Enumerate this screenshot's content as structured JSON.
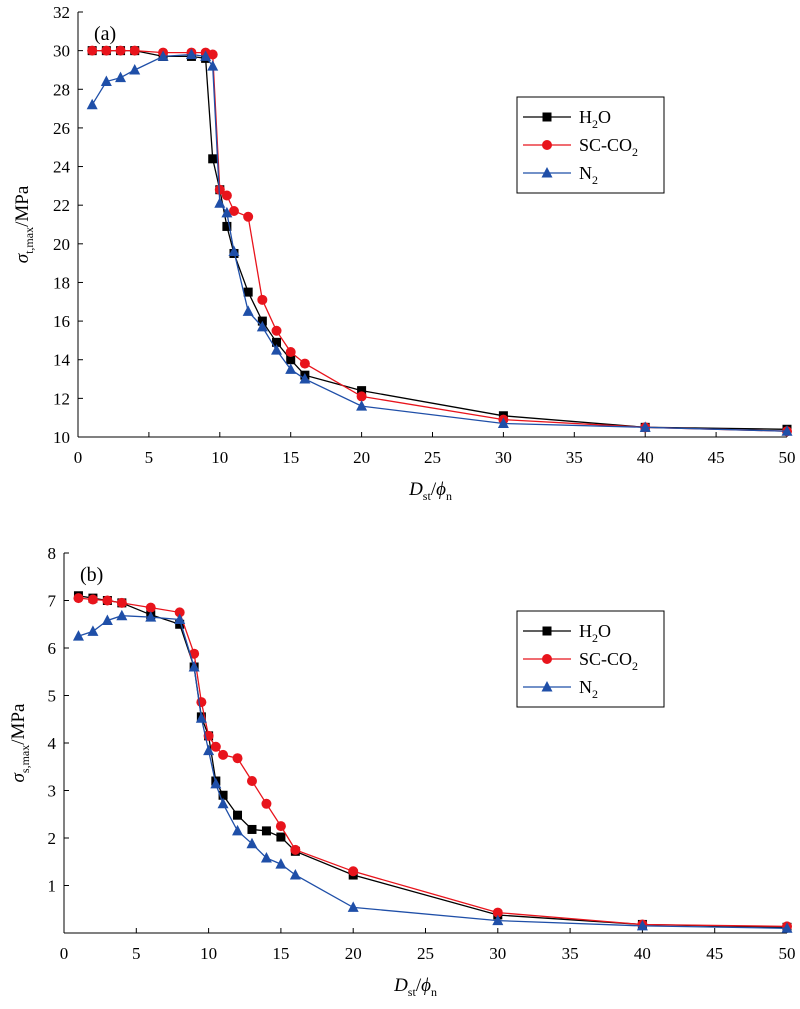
{
  "chart_data": [
    {
      "type": "line",
      "panel_label": "(a)",
      "ylabel": {
        "base": "σ",
        "sub": "t,max",
        "unit": "/MPa"
      },
      "xlabel": {
        "base": "D",
        "sub1": "st",
        "slash": "/",
        "base2": "ϕ",
        "sub2": "n"
      },
      "xlim": [
        0,
        50
      ],
      "ylim": [
        10,
        32
      ],
      "xticks": [
        0,
        5,
        10,
        15,
        20,
        25,
        30,
        35,
        40,
        45,
        50
      ],
      "yticks": [
        10,
        12,
        14,
        16,
        18,
        20,
        22,
        24,
        26,
        28,
        30,
        32
      ],
      "legend_position": "upper-right",
      "grid": false,
      "series": [
        {
          "name": "H₂O",
          "label_base": "H",
          "label_sub": "2",
          "label_tail": "O",
          "color": "#000000",
          "marker": "square",
          "points": [
            [
              1,
              30
            ],
            [
              2,
              30
            ],
            [
              3,
              30
            ],
            [
              4,
              30
            ],
            [
              6,
              29.7
            ],
            [
              8,
              29.7
            ],
            [
              9,
              29.6
            ],
            [
              9.5,
              24.4
            ],
            [
              10,
              22.8
            ],
            [
              10.5,
              20.9
            ],
            [
              11,
              19.5
            ],
            [
              12,
              17.5
            ],
            [
              13,
              16
            ],
            [
              14,
              14.9
            ],
            [
              15,
              14
            ],
            [
              16,
              13.2
            ],
            [
              20,
              12.4
            ],
            [
              30,
              11.1
            ],
            [
              40,
              10.5
            ],
            [
              50,
              10.4
            ]
          ]
        },
        {
          "name": "SC-CO₂",
          "label_base": "SC-CO",
          "label_sub": "2",
          "label_tail": "",
          "color": "#e8141c",
          "marker": "circle",
          "points": [
            [
              1,
              30
            ],
            [
              2,
              30
            ],
            [
              3,
              30
            ],
            [
              4,
              30
            ],
            [
              6,
              29.9
            ],
            [
              8,
              29.9
            ],
            [
              9,
              29.9
            ],
            [
              9.5,
              29.8
            ],
            [
              10,
              22.8
            ],
            [
              10.5,
              22.5
            ],
            [
              11,
              21.7
            ],
            [
              12,
              21.4
            ],
            [
              13,
              17.1
            ],
            [
              14,
              15.5
            ],
            [
              15,
              14.4
            ],
            [
              16,
              13.8
            ],
            [
              20,
              12.1
            ],
            [
              30,
              10.9
            ],
            [
              40,
              10.5
            ],
            [
              50,
              10.3
            ]
          ]
        },
        {
          "name": "N₂",
          "label_base": "N",
          "label_sub": "2",
          "label_tail": "",
          "color": "#1f4fa8",
          "marker": "triangle",
          "points": [
            [
              1,
              27.2
            ],
            [
              2,
              28.4
            ],
            [
              3,
              28.6
            ],
            [
              4,
              29
            ],
            [
              6,
              29.7
            ],
            [
              8,
              29.8
            ],
            [
              9,
              29.7
            ],
            [
              9.5,
              29.2
            ],
            [
              10,
              22.1
            ],
            [
              10.5,
              21.6
            ],
            [
              11,
              19.6
            ],
            [
              12,
              16.5
            ],
            [
              13,
              15.7
            ],
            [
              14,
              14.5
            ],
            [
              15,
              13.5
            ],
            [
              16,
              13
            ],
            [
              20,
              11.6
            ],
            [
              30,
              10.7
            ],
            [
              40,
              10.5
            ],
            [
              50,
              10.3
            ]
          ]
        }
      ]
    },
    {
      "type": "line",
      "panel_label": "(b)",
      "ylabel": {
        "base": "σ",
        "sub": "s,max",
        "unit": "/MPa"
      },
      "xlabel": {
        "base": "D",
        "sub1": "st",
        "slash": "/",
        "base2": "ϕ",
        "sub2": "n"
      },
      "xlim": [
        0,
        50
      ],
      "ylim": [
        0,
        8
      ],
      "xticks": [
        0,
        5,
        10,
        15,
        20,
        25,
        30,
        35,
        40,
        45,
        50
      ],
      "yticks": [
        1,
        2,
        3,
        4,
        5,
        6,
        7,
        8
      ],
      "legend_position": "right",
      "grid": false,
      "series": [
        {
          "name": "H₂O",
          "label_base": "H",
          "label_sub": "2",
          "label_tail": "O",
          "color": "#000000",
          "marker": "square",
          "points": [
            [
              1,
              7.1
            ],
            [
              2,
              7.05
            ],
            [
              3,
              7
            ],
            [
              4,
              6.95
            ],
            [
              6,
              6.7
            ],
            [
              8,
              6.5
            ],
            [
              9,
              5.6
            ],
            [
              9.5,
              4.55
            ],
            [
              10,
              4.15
            ],
            [
              10.5,
              3.2
            ],
            [
              11,
              2.9
            ],
            [
              12,
              2.48
            ],
            [
              13,
              2.18
            ],
            [
              14,
              2.15
            ],
            [
              15,
              2.02
            ],
            [
              16,
              1.72
            ],
            [
              20,
              1.22
            ],
            [
              30,
              0.38
            ],
            [
              40,
              0.18
            ],
            [
              50,
              0.12
            ]
          ]
        },
        {
          "name": "SC-CO₂",
          "label_base": "SC-CO",
          "label_sub": "2",
          "label_tail": "",
          "color": "#e8141c",
          "marker": "circle",
          "points": [
            [
              1,
              7.05
            ],
            [
              2,
              7.02
            ],
            [
              3,
              7
            ],
            [
              4,
              6.95
            ],
            [
              6,
              6.85
            ],
            [
              8,
              6.75
            ],
            [
              9,
              5.88
            ],
            [
              9.5,
              4.86
            ],
            [
              10,
              4.15
            ],
            [
              10.5,
              3.92
            ],
            [
              11,
              3.75
            ],
            [
              12,
              3.68
            ],
            [
              13,
              3.2
            ],
            [
              14,
              2.72
            ],
            [
              15,
              2.25
            ],
            [
              16,
              1.75
            ],
            [
              20,
              1.3
            ],
            [
              30,
              0.43
            ],
            [
              40,
              0.18
            ],
            [
              50,
              0.14
            ]
          ]
        },
        {
          "name": "N₂",
          "label_base": "N",
          "label_sub": "2",
          "label_tail": "",
          "color": "#1f4fa8",
          "marker": "triangle",
          "points": [
            [
              1,
              6.25
            ],
            [
              2,
              6.35
            ],
            [
              3,
              6.58
            ],
            [
              4,
              6.68
            ],
            [
              6,
              6.65
            ],
            [
              8,
              6.6
            ],
            [
              9,
              5.6
            ],
            [
              9.5,
              4.52
            ],
            [
              10,
              3.84
            ],
            [
              10.5,
              3.14
            ],
            [
              11,
              2.72
            ],
            [
              12,
              2.15
            ],
            [
              13,
              1.88
            ],
            [
              14,
              1.58
            ],
            [
              15,
              1.45
            ],
            [
              16,
              1.22
            ],
            [
              20,
              0.54
            ],
            [
              30,
              0.26
            ],
            [
              40,
              0.15
            ],
            [
              50,
              0.1
            ]
          ]
        }
      ]
    }
  ]
}
